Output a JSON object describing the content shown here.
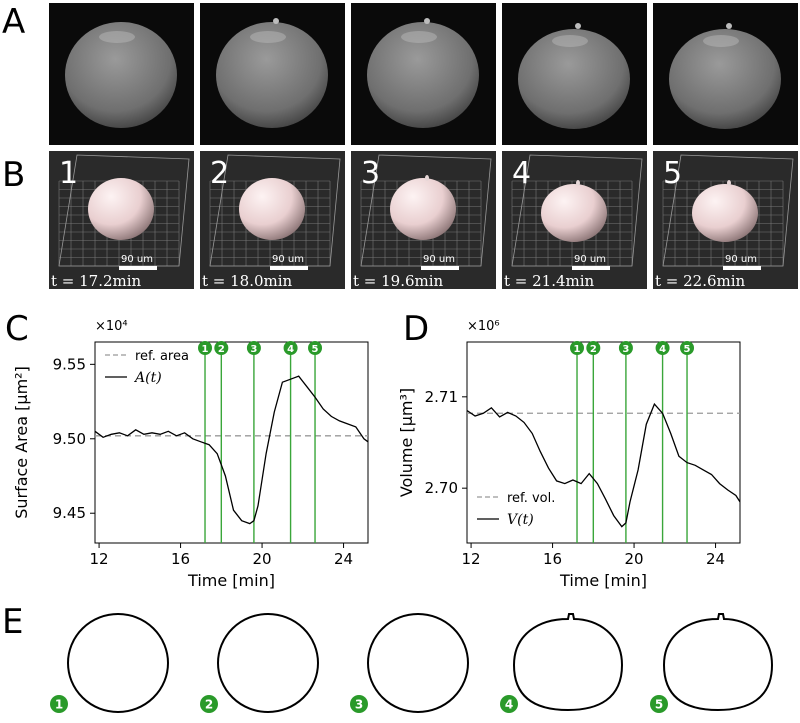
{
  "panels": {
    "A": "A",
    "B": "B",
    "C": "C",
    "D": "D",
    "E": "E"
  },
  "frames": [
    {
      "num": "1",
      "time": "t = 17.2min",
      "scale": "90 um"
    },
    {
      "num": "2",
      "time": "t = 18.0min",
      "scale": "90 um"
    },
    {
      "num": "3",
      "time": "t = 19.6min",
      "scale": "90 um"
    },
    {
      "num": "4",
      "time": "t = 21.4min",
      "scale": "90 um"
    },
    {
      "num": "5",
      "time": "t = 22.6min",
      "scale": "90 um"
    }
  ],
  "colors": {
    "marker_green": "#2a9a2a",
    "marker_line": "#3aa63a",
    "ref_dash": "#999999",
    "data_line": "#000000",
    "cell_surface": "#e9cfd0"
  },
  "chart_data": [
    {
      "type": "line",
      "xlabel": "Time [min]",
      "ylabel": "Surface Area [µm²]",
      "exponent": "×10⁴",
      "xlim": [
        11.8,
        25.2
      ],
      "ylim": [
        9.43,
        9.565
      ],
      "xticks": [
        12,
        16,
        20,
        24
      ],
      "yticks": [
        9.45,
        9.5,
        9.55
      ],
      "ytick_labels": [
        "9.45",
        "9.50",
        "9.55"
      ],
      "legend_location": "upper-left",
      "markers": [
        {
          "label": "1",
          "x": 17.2
        },
        {
          "label": "2",
          "x": 18.0
        },
        {
          "label": "3",
          "x": 19.6
        },
        {
          "label": "4",
          "x": 21.4
        },
        {
          "label": "5",
          "x": 22.6
        }
      ],
      "reference": {
        "name": "ref. area",
        "y": 9.502
      },
      "series": [
        {
          "name": "A(t)",
          "x": [
            11.8,
            12.2,
            12.6,
            13.0,
            13.4,
            13.8,
            14.2,
            14.6,
            15.0,
            15.4,
            15.8,
            16.2,
            16.6,
            17.0,
            17.4,
            17.8,
            18.2,
            18.6,
            19.0,
            19.4,
            19.6,
            19.8,
            20.2,
            20.6,
            21.0,
            21.4,
            21.8,
            22.2,
            22.6,
            23.0,
            23.4,
            23.8,
            24.2,
            24.6,
            25.0,
            25.2
          ],
          "y": [
            9.505,
            9.501,
            9.503,
            9.504,
            9.502,
            9.506,
            9.503,
            9.504,
            9.503,
            9.505,
            9.502,
            9.504,
            9.5,
            9.498,
            9.496,
            9.49,
            9.475,
            9.452,
            9.445,
            9.443,
            9.445,
            9.455,
            9.49,
            9.518,
            9.538,
            9.54,
            9.542,
            9.535,
            9.528,
            9.52,
            9.515,
            9.512,
            9.51,
            9.508,
            9.5,
            9.498
          ]
        }
      ]
    },
    {
      "type": "line",
      "xlabel": "Time [min]",
      "ylabel": "Volume [µm³]",
      "exponent": "×10⁶",
      "xlim": [
        11.8,
        25.2
      ],
      "ylim": [
        2.694,
        2.716
      ],
      "xticks": [
        12,
        16,
        20,
        24
      ],
      "yticks": [
        2.7,
        2.71
      ],
      "ytick_labels": [
        "2.70",
        "2.71"
      ],
      "legend_location": "lower-left",
      "markers": [
        {
          "label": "1",
          "x": 17.2
        },
        {
          "label": "2",
          "x": 18.0
        },
        {
          "label": "3",
          "x": 19.6
        },
        {
          "label": "4",
          "x": 21.4
        },
        {
          "label": "5",
          "x": 22.6
        }
      ],
      "reference": {
        "name": "ref. vol.",
        "y": 2.7082
      },
      "series": [
        {
          "name": "V(t)",
          "x": [
            11.8,
            12.2,
            12.6,
            13.0,
            13.4,
            13.8,
            14.2,
            14.6,
            15.0,
            15.4,
            15.8,
            16.2,
            16.6,
            17.0,
            17.4,
            17.8,
            18.2,
            18.6,
            19.0,
            19.4,
            19.6,
            19.8,
            20.2,
            20.6,
            21.0,
            21.4,
            21.8,
            22.2,
            22.6,
            23.0,
            23.4,
            23.8,
            24.2,
            24.6,
            25.0,
            25.2
          ],
          "y": [
            2.7085,
            2.7079,
            2.7082,
            2.7088,
            2.7078,
            2.7083,
            2.7079,
            2.7072,
            2.706,
            2.704,
            2.7022,
            2.7008,
            2.7005,
            2.7009,
            2.7005,
            2.7016,
            2.7005,
            2.6988,
            2.697,
            2.6958,
            2.6962,
            2.6985,
            2.702,
            2.707,
            2.7092,
            2.7082,
            2.706,
            2.7035,
            2.7028,
            2.7025,
            2.702,
            2.7015,
            2.7005,
            2.6998,
            2.6992,
            2.6985
          ]
        }
      ]
    }
  ]
}
